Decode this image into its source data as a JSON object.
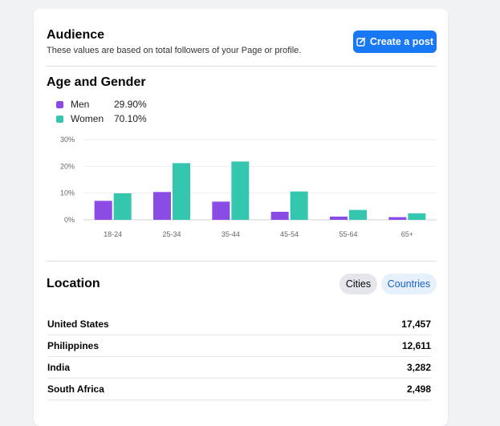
{
  "audience": {
    "title": "Audience",
    "subtitle": "These values are based on total followers of your Page or profile.",
    "create_post_label": "Create a post"
  },
  "age_gender": {
    "title": "Age and Gender",
    "legend": [
      {
        "name": "Men",
        "value": "29.90%",
        "color": "#8b4ce6"
      },
      {
        "name": "Women",
        "value": "70.10%",
        "color": "#35c6b0"
      }
    ]
  },
  "chart_data": {
    "type": "bar",
    "categories": [
      "18-24",
      "25-34",
      "35-44",
      "45-54",
      "55-64",
      "65+"
    ],
    "series": [
      {
        "name": "Men",
        "values": [
          7.1,
          10.4,
          6.8,
          3.0,
          1.2,
          1.0
        ],
        "color": "#8b4ce6"
      },
      {
        "name": "Women",
        "values": [
          9.9,
          21.2,
          21.8,
          10.6,
          3.7,
          2.4
        ],
        "color": "#35c6b0"
      }
    ],
    "yticks": [
      "0%",
      "10%",
      "20%",
      "30%"
    ],
    "ylim": [
      0,
      30
    ],
    "grid": true,
    "xlabel": "",
    "ylabel": ""
  },
  "location": {
    "title": "Location",
    "tabs": {
      "cities": "Cities",
      "countries": "Countries"
    },
    "rows": [
      {
        "name": "United States",
        "value": "17,457"
      },
      {
        "name": "Philippines",
        "value": "12,611"
      },
      {
        "name": "India",
        "value": "3,282"
      },
      {
        "name": "South Africa",
        "value": "2,498"
      }
    ]
  }
}
